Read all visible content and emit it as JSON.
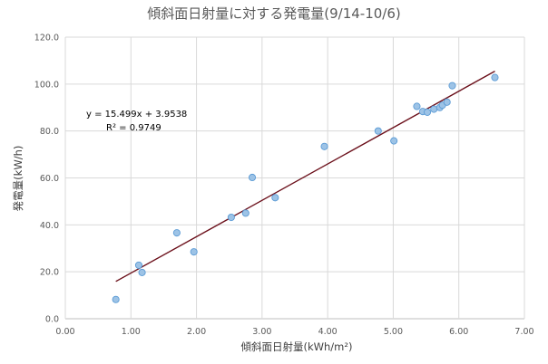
{
  "chart_data": {
    "type": "scatter",
    "title": "傾斜面日射量に対する発電量(9/14-10/6)",
    "xlabel": "傾斜面日射量(kWh/m²)",
    "ylabel": "発電量(kW/h)",
    "xlim": [
      0,
      7
    ],
    "ylim": [
      0,
      120
    ],
    "x_ticks": [
      "0.00",
      "1.00",
      "2.00",
      "3.00",
      "4.00",
      "5.00",
      "6.00",
      "7.00"
    ],
    "y_ticks": [
      "0.0",
      "20.0",
      "40.0",
      "60.0",
      "80.0",
      "100.0",
      "120.0"
    ],
    "x_tick_values": [
      0,
      1,
      2,
      3,
      4,
      5,
      6,
      7
    ],
    "y_tick_values": [
      0,
      20,
      40,
      60,
      80,
      100,
      120
    ],
    "grid": true,
    "legend": "none",
    "points": [
      {
        "x": 0.77,
        "y": 8.2
      },
      {
        "x": 1.12,
        "y": 22.8
      },
      {
        "x": 1.17,
        "y": 19.7
      },
      {
        "x": 1.7,
        "y": 36.6
      },
      {
        "x": 1.96,
        "y": 28.5
      },
      {
        "x": 2.53,
        "y": 43.2
      },
      {
        "x": 2.75,
        "y": 45.0
      },
      {
        "x": 2.85,
        "y": 60.2
      },
      {
        "x": 3.2,
        "y": 51.6
      },
      {
        "x": 3.95,
        "y": 73.4
      },
      {
        "x": 4.77,
        "y": 80.0
      },
      {
        "x": 5.01,
        "y": 75.8
      },
      {
        "x": 5.36,
        "y": 90.5
      },
      {
        "x": 5.45,
        "y": 88.3
      },
      {
        "x": 5.52,
        "y": 88.0
      },
      {
        "x": 5.62,
        "y": 89.3
      },
      {
        "x": 5.71,
        "y": 90.0
      },
      {
        "x": 5.75,
        "y": 91.0
      },
      {
        "x": 5.82,
        "y": 92.3
      },
      {
        "x": 5.9,
        "y": 99.3
      },
      {
        "x": 6.55,
        "y": 102.8
      }
    ],
    "trendline": {
      "type": "linear",
      "slope": 15.499,
      "intercept": 3.9538,
      "x_range": [
        0.77,
        6.55
      ],
      "equation": "y = 15.499x + 3.9538",
      "r_squared": "R² = 0.9749"
    },
    "colors": {
      "marker_fill": "#9dc3e6",
      "marker_stroke": "#5b9bd5",
      "trendline": "#6b0f1a",
      "gridline": "#d9d9d9",
      "text": "#595959"
    }
  }
}
